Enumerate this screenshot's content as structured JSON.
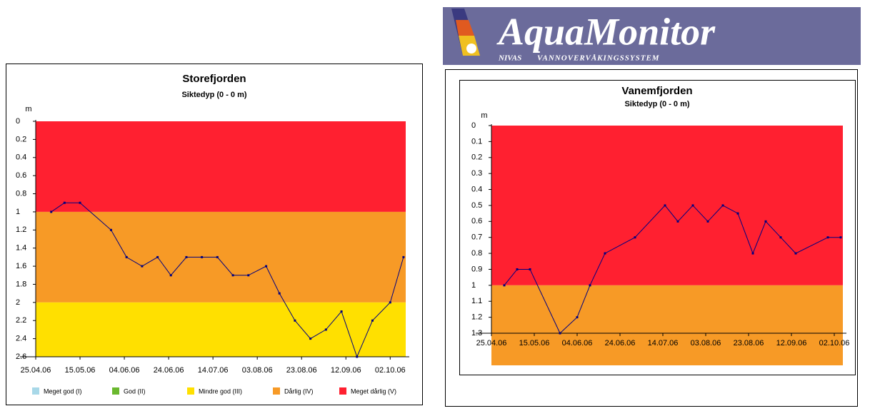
{
  "logo": {
    "name": "AquaMonitor",
    "org": "NIVAS",
    "system": "VANNOVERVÅKINGSSYSTEM"
  },
  "chart_data": [
    {
      "type": "line",
      "title": "Storefjorden",
      "subtitle": "Siktedyp (0 - 0 m)",
      "y_label": "m",
      "x": [
        "2006-05-02",
        "2006-05-08",
        "2006-05-15",
        "2006-05-29",
        "2006-06-05",
        "2006-06-12",
        "2006-06-19",
        "2006-06-25",
        "2006-07-02",
        "2006-07-09",
        "2006-07-16",
        "2006-07-23",
        "2006-07-30",
        "2006-08-07",
        "2006-08-13",
        "2006-08-20",
        "2006-08-27",
        "2006-09-03",
        "2006-09-10",
        "2006-09-17",
        "2006-09-24",
        "2006-10-02",
        "2006-10-08"
      ],
      "series": [
        {
          "color": "#000080",
          "values": [
            1.0,
            0.9,
            0.9,
            1.2,
            1.5,
            1.6,
            1.5,
            1.7,
            1.5,
            1.5,
            1.5,
            1.7,
            1.7,
            1.6,
            1.9,
            2.2,
            2.4,
            2.3,
            2.1,
            2.6,
            2.2,
            2.0,
            1.5
          ]
        }
      ],
      "xlim": [
        "2006-04-25",
        "2006-10-09"
      ],
      "xticks": [
        {
          "value": "2006-04-25",
          "label": "25.04.06"
        },
        {
          "value": "2006-05-15",
          "label": "15.05.06"
        },
        {
          "value": "2006-06-04",
          "label": "04.06.06"
        },
        {
          "value": "2006-06-24",
          "label": "24.06.06"
        },
        {
          "value": "2006-07-14",
          "label": "14.07.06"
        },
        {
          "value": "2006-08-03",
          "label": "03.08.06"
        },
        {
          "value": "2006-08-23",
          "label": "23.08.06"
        },
        {
          "value": "2006-09-12",
          "label": "12.09.06"
        },
        {
          "value": "2006-10-02",
          "label": "02.10.06"
        }
      ],
      "ylim": [
        0,
        2.6
      ],
      "y_inverted": true,
      "yticks": [
        0,
        0.2,
        0.4,
        0.6,
        0.8,
        1,
        1.2,
        1.4,
        1.6,
        1.8,
        2,
        2.2,
        2.4,
        2.6
      ],
      "bands": [
        {
          "color": "#ff2030",
          "from": 0,
          "to": 1
        },
        {
          "color": "#f79a26",
          "from": 1,
          "to": 2
        },
        {
          "color": "#ffe000",
          "from": 2,
          "to": 2.6
        }
      ],
      "legend": [
        {
          "name": "Meget god (I)",
          "color": "#a8d8e8"
        },
        {
          "name": "God (II)",
          "color": "#6ab82e"
        },
        {
          "name": "Mindre god (III)",
          "color": "#ffe000"
        },
        {
          "name": "Dårlig (IV)",
          "color": "#f79a26"
        },
        {
          "name": "Meget dårlig (V)",
          "color": "#ff2030"
        }
      ]
    },
    {
      "type": "line",
      "title": "Vanemfjorden",
      "subtitle": "Siktedyp (0 - 0 m)",
      "y_label": "m",
      "x": [
        "2006-05-01",
        "2006-05-07",
        "2006-05-13",
        "2006-05-27",
        "2006-06-04",
        "2006-06-10",
        "2006-06-17",
        "2006-07-01",
        "2006-07-15",
        "2006-07-21",
        "2006-07-28",
        "2006-08-04",
        "2006-08-11",
        "2006-08-18",
        "2006-08-25",
        "2006-08-31",
        "2006-09-07",
        "2006-09-14",
        "2006-09-29",
        "2006-10-05"
      ],
      "series": [
        {
          "color": "#000080",
          "values": [
            1.0,
            0.9,
            0.9,
            1.3,
            1.2,
            1.0,
            0.8,
            0.7,
            0.5,
            0.6,
            0.5,
            0.6,
            0.5,
            0.55,
            0.8,
            0.6,
            0.7,
            0.8,
            0.7,
            0.7
          ]
        }
      ],
      "xlim": [
        "2006-04-25",
        "2006-10-06"
      ],
      "xticks": [
        {
          "value": "2006-04-25",
          "label": "25.04.06"
        },
        {
          "value": "2006-05-15",
          "label": "15.05.06"
        },
        {
          "value": "2006-06-04",
          "label": "04.06.06"
        },
        {
          "value": "2006-06-24",
          "label": "24.06.06"
        },
        {
          "value": "2006-07-14",
          "label": "14.07.06"
        },
        {
          "value": "2006-08-03",
          "label": "03.08.06"
        },
        {
          "value": "2006-08-23",
          "label": "23.08.06"
        },
        {
          "value": "2006-09-12",
          "label": "12.09.06"
        },
        {
          "value": "2006-10-02",
          "label": "02.10.06"
        }
      ],
      "ylim": [
        0,
        1.3
      ],
      "y_inverted": true,
      "yticks": [
        0,
        0.1,
        0.2,
        0.3,
        0.4,
        0.5,
        0.6,
        0.7,
        0.8,
        0.9,
        1,
        1.1,
        1.2,
        1.3
      ],
      "bands": [
        {
          "color": "#ff2030",
          "from": 0,
          "to": 1
        },
        {
          "color": "#f79a26",
          "from": 1,
          "to": 1.3
        }
      ]
    }
  ]
}
